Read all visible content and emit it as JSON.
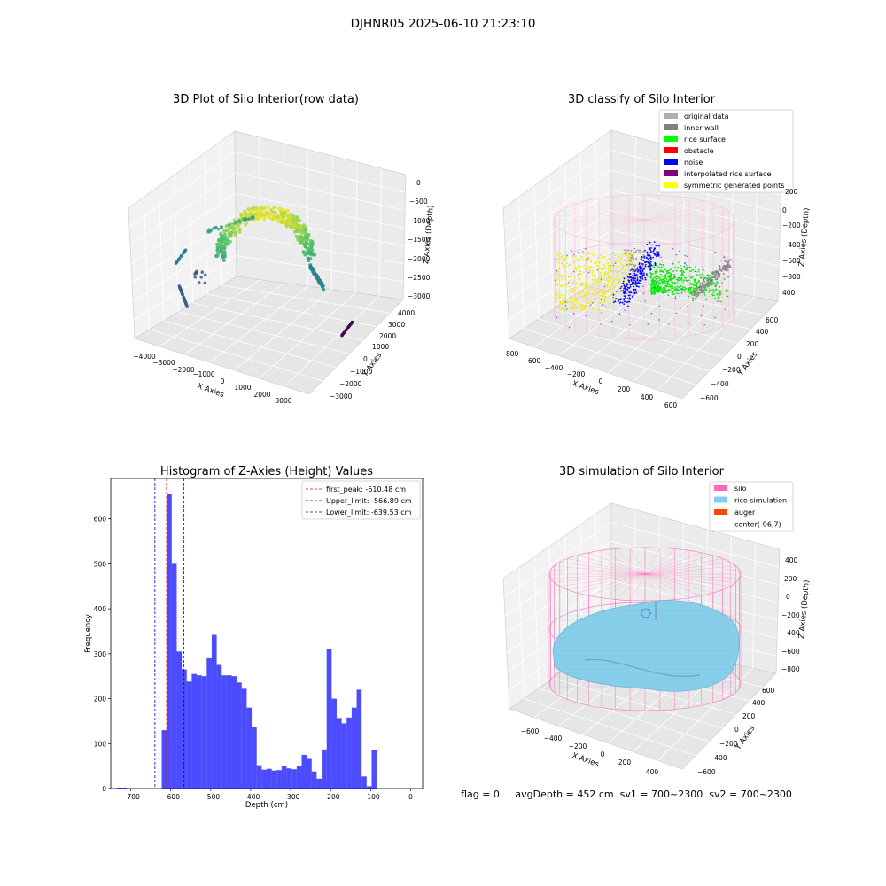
{
  "suptitle": "DJHNR05 2025-06-10 21:23:10",
  "panels": {
    "raw": {
      "title": "3D Plot of Silo Interior(row data)",
      "xlabel": "X Axies",
      "ylabel": "Y Axies",
      "zlabel": "Z Axies (Depth)",
      "xticks": [
        "−4000",
        "−3000",
        "−2000",
        "−1000",
        "0",
        "1000",
        "2000",
        "3000"
      ],
      "yticks": [
        "−3000",
        "−2000",
        "−1000",
        "0",
        "1000",
        "2000",
        "3000",
        "4000"
      ],
      "zticks": [
        "0",
        "−500",
        "−1000",
        "−1500",
        "−2000",
        "−2500",
        "−3000"
      ]
    },
    "classify": {
      "title": "3D classify of Silo Interior",
      "xlabel": "X Axies",
      "ylabel": "Y Axies",
      "zlabel": "Z Axies (Depth)",
      "xticks": [
        "−800",
        "−600",
        "−400",
        "−200",
        "0",
        "200",
        "400",
        "600"
      ],
      "yticks": [
        "−600",
        "−400",
        "−200",
        "0",
        "200",
        "400",
        "600"
      ],
      "zticks": [
        "200",
        "0",
        "−200",
        "−400",
        "−600",
        "−800",
        "400"
      ],
      "legend": [
        {
          "label": "original data",
          "color": "#b0b0b0"
        },
        {
          "label": "inner wall",
          "color": "#808080"
        },
        {
          "label": "rice surface",
          "color": "#00ff00"
        },
        {
          "label": "obstacle",
          "color": "#ff0000"
        },
        {
          "label": "noise",
          "color": "#0000ff"
        },
        {
          "label": "interpolated rice surface",
          "color": "#800080"
        },
        {
          "label": "symmetric generated points",
          "color": "#ffff00"
        }
      ]
    },
    "simulation": {
      "title": "3D simulation of Silo Interior",
      "xlabel": "X Axies",
      "ylabel": "Y Axies",
      "zlabel": "Z Axies (Depth)",
      "xticks": [
        "−600",
        "−400",
        "−200",
        "0",
        "200",
        "400"
      ],
      "yticks": [
        "−600",
        "−400",
        "−200",
        "0",
        "200",
        "400",
        "600"
      ],
      "zticks": [
        "400",
        "200",
        "0",
        "−200",
        "−400",
        "−600",
        "−800"
      ],
      "legend": [
        {
          "label": "silo",
          "color": "#ff69b4"
        },
        {
          "label": "rice simulation",
          "color": "#87ceeb"
        },
        {
          "label": "auger",
          "color": "#ff4500"
        },
        {
          "label": "center(-96,7)",
          "color": "#ffffff"
        }
      ]
    }
  },
  "chart_data": {
    "type": "bar",
    "title": "Histogram of Z-Axies (Height) Values",
    "xlabel": "Depth (cm)",
    "ylabel": "Frequency",
    "xlim": [
      -750,
      30
    ],
    "ylim": [
      0,
      690
    ],
    "xticks": [
      -700,
      -600,
      -500,
      -400,
      -300,
      -200,
      -100,
      0
    ],
    "yticks": [
      0,
      100,
      200,
      300,
      400,
      500,
      600
    ],
    "bin_width": 12.5,
    "bar_color": "#0000ff",
    "bins": [
      {
        "x": -735,
        "y": 2
      },
      {
        "x": -722.5,
        "y": 2
      },
      {
        "x": -635,
        "y": 0
      },
      {
        "x": -622.5,
        "y": 130
      },
      {
        "x": -610,
        "y": 655
      },
      {
        "x": -597.5,
        "y": 500
      },
      {
        "x": -585,
        "y": 305
      },
      {
        "x": -572.5,
        "y": 265
      },
      {
        "x": -560,
        "y": 238
      },
      {
        "x": -547.5,
        "y": 255
      },
      {
        "x": -535,
        "y": 252
      },
      {
        "x": -522.5,
        "y": 250
      },
      {
        "x": -510,
        "y": 290
      },
      {
        "x": -497.5,
        "y": 342
      },
      {
        "x": -485,
        "y": 275
      },
      {
        "x": -472.5,
        "y": 252
      },
      {
        "x": -460,
        "y": 252
      },
      {
        "x": -447.5,
        "y": 250
      },
      {
        "x": -435,
        "y": 236
      },
      {
        "x": -422.5,
        "y": 222
      },
      {
        "x": -410,
        "y": 180
      },
      {
        "x": -397.5,
        "y": 138
      },
      {
        "x": -385,
        "y": 52
      },
      {
        "x": -372.5,
        "y": 42
      },
      {
        "x": -360,
        "y": 44
      },
      {
        "x": -347.5,
        "y": 40
      },
      {
        "x": -335,
        "y": 41
      },
      {
        "x": -322.5,
        "y": 50
      },
      {
        "x": -310,
        "y": 45
      },
      {
        "x": -297.5,
        "y": 43
      },
      {
        "x": -285,
        "y": 50
      },
      {
        "x": -272.5,
        "y": 75
      },
      {
        "x": -260,
        "y": 66
      },
      {
        "x": -247.5,
        "y": 38
      },
      {
        "x": -235,
        "y": 22
      },
      {
        "x": -222.5,
        "y": 87
      },
      {
        "x": -210,
        "y": 310
      },
      {
        "x": -197.5,
        "y": 200
      },
      {
        "x": -185,
        "y": 157
      },
      {
        "x": -172.5,
        "y": 145
      },
      {
        "x": -160,
        "y": 158
      },
      {
        "x": -147.5,
        "y": 180
      },
      {
        "x": -135,
        "y": 220
      },
      {
        "x": -122.5,
        "y": 27
      },
      {
        "x": -110,
        "y": 5
      },
      {
        "x": -97.5,
        "y": 85
      }
    ],
    "vlines": [
      {
        "name": "first_peak: -610.48 cm",
        "x": -610.48,
        "color": "#ff0000"
      },
      {
        "name": "Upper_limit: -566.89 cm",
        "x": -566.89,
        "color": "#0000aa"
      },
      {
        "name": "Lower_limit: -639.53 cm",
        "x": -639.53,
        "color": "#0000aa"
      }
    ],
    "legend_position": "top-right"
  },
  "status": {
    "text": "flag = 0     avgDepth = 452 cm  sv1 = 700~2300  sv2 = 700~2300"
  }
}
